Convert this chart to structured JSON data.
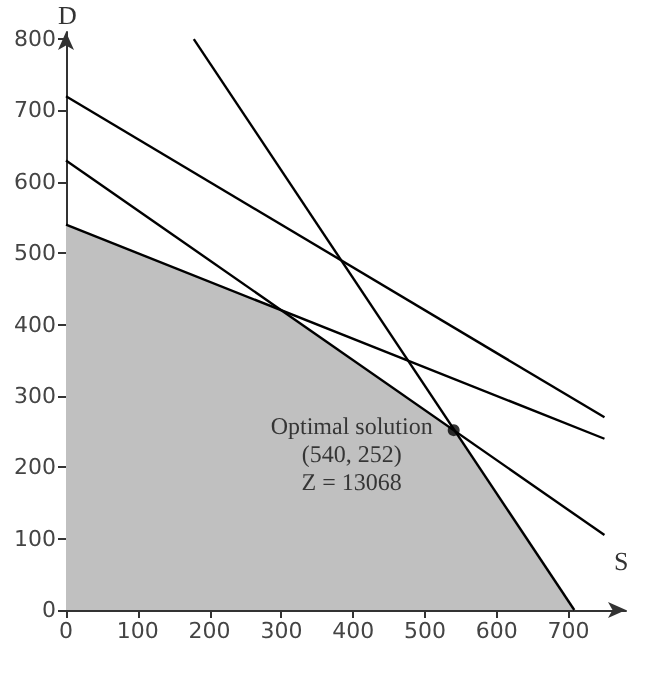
{
  "chart_data": {
    "type": "line",
    "xlabel": "S",
    "ylabel": "D",
    "xlim": [
      0,
      780
    ],
    "ylim": [
      0,
      810
    ],
    "xticks": [
      0,
      100,
      200,
      300,
      400,
      500,
      600,
      700
    ],
    "yticks": [
      0,
      100,
      200,
      300,
      400,
      500,
      600,
      700,
      800
    ],
    "grid": false,
    "marker": "none",
    "line_style": "solid",
    "series": [
      {
        "type": "area",
        "color": "#c0c0c0",
        "x": [
          0,
          300,
          540,
          708
        ],
        "values": [
          540,
          420,
          252,
          0
        ]
      },
      {
        "color": "#000000",
        "x": [
          0,
          750
        ],
        "values": [
          540,
          240
        ]
      },
      {
        "color": "#000000",
        "x": [
          0,
          750
        ],
        "values": [
          630,
          105
        ]
      },
      {
        "color": "#000000",
        "x": [
          0,
          750
        ],
        "values": [
          720,
          270
        ]
      },
      {
        "color": "#000000",
        "x": [
          178,
          708
        ],
        "values": [
          800,
          0
        ]
      },
      {
        "type": "scatter",
        "marker": "circle",
        "color": "#000000",
        "x": [
          540
        ],
        "values": [
          252
        ]
      }
    ],
    "annotations": [
      {
        "text": "Optimal solution\n(540, 252)\nZ = 13068",
        "x": 540,
        "y": 252
      }
    ]
  }
}
